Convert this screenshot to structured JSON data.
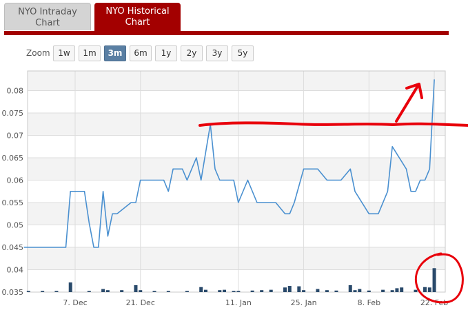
{
  "tabs": [
    {
      "line1": "NYO Intraday",
      "line2": "Chart",
      "active": false
    },
    {
      "line1": "NYO Historical",
      "line2": "Chart",
      "active": true
    }
  ],
  "zoom": {
    "label": "Zoom",
    "options": [
      "1w",
      "1m",
      "3m",
      "6m",
      "1y",
      "2y",
      "3y",
      "5y"
    ],
    "selected": "3m"
  },
  "colors": {
    "accent": "#a30000",
    "price_line": "#4a90d0",
    "volume_bar": "#2a4a6b",
    "annotation": "#e8000b"
  },
  "chart_data": {
    "type": "line",
    "ylim": [
      0.035,
      0.0825
    ],
    "y_ticks": [
      "0.035",
      "0.04",
      "0.045",
      "0.05",
      "0.055",
      "0.06",
      "0.065",
      "0.07",
      "0.075",
      "0.08"
    ],
    "x_ticks": [
      "7. Dec",
      "21. Dec",
      "11. Jan",
      "25. Jan",
      "8. Feb",
      "22. Feb"
    ],
    "x_tick_dates": [
      "2012-12-07",
      "2012-12-21",
      "2013-01-11",
      "2013-01-25",
      "2013-02-08",
      "2013-02-22"
    ],
    "grid": true,
    "series": [
      {
        "kind": "price",
        "points": [
          [
            "2012-11-26",
            0.045
          ],
          [
            "2012-12-05",
            0.045
          ],
          [
            "2012-12-06",
            0.0575
          ],
          [
            "2012-12-09",
            0.0575
          ],
          [
            "2012-12-10",
            0.0505
          ],
          [
            "2012-12-11",
            0.045
          ],
          [
            "2012-12-12",
            0.045
          ],
          [
            "2012-12-13",
            0.0575
          ],
          [
            "2012-12-14",
            0.0475
          ],
          [
            "2012-12-15",
            0.0525
          ],
          [
            "2012-12-16",
            0.0525
          ],
          [
            "2012-12-19",
            0.055
          ],
          [
            "2012-12-20",
            0.055
          ],
          [
            "2012-12-21",
            0.06
          ],
          [
            "2012-12-26",
            0.06
          ],
          [
            "2012-12-27",
            0.0575
          ],
          [
            "2012-12-28",
            0.0625
          ],
          [
            "2012-12-30",
            0.0625
          ],
          [
            "2012-12-31",
            0.06
          ],
          [
            "2013-01-02",
            0.065
          ],
          [
            "2013-01-03",
            0.06
          ],
          [
            "2013-01-05",
            0.0725
          ],
          [
            "2013-01-06",
            0.0625
          ],
          [
            "2013-01-07",
            0.06
          ],
          [
            "2013-01-10",
            0.06
          ],
          [
            "2013-01-11",
            0.055
          ],
          [
            "2013-01-13",
            0.06
          ],
          [
            "2013-01-15",
            0.055
          ],
          [
            "2013-01-19",
            0.055
          ],
          [
            "2013-01-21",
            0.0525
          ],
          [
            "2013-01-22",
            0.0525
          ],
          [
            "2013-01-23",
            0.055
          ],
          [
            "2013-01-25",
            0.0625
          ],
          [
            "2013-01-28",
            0.0625
          ],
          [
            "2013-01-30",
            0.06
          ],
          [
            "2013-02-02",
            0.06
          ],
          [
            "2013-02-04",
            0.0625
          ],
          [
            "2013-02-05",
            0.0575
          ],
          [
            "2013-02-08",
            0.0525
          ],
          [
            "2013-02-10",
            0.0525
          ],
          [
            "2013-02-12",
            0.0575
          ],
          [
            "2013-02-13",
            0.0675
          ],
          [
            "2013-02-16",
            0.0625
          ],
          [
            "2013-02-17",
            0.0575
          ],
          [
            "2013-02-18",
            0.0575
          ],
          [
            "2013-02-19",
            0.06
          ],
          [
            "2013-02-20",
            0.06
          ],
          [
            "2013-02-21",
            0.0625
          ],
          [
            "2013-02-22",
            0.0825
          ]
        ]
      },
      {
        "kind": "volume",
        "points": [
          [
            "2012-11-27",
            0.3
          ],
          [
            "2012-11-30",
            0.3
          ],
          [
            "2012-12-03",
            0.3
          ],
          [
            "2012-12-06",
            2.5
          ],
          [
            "2012-12-10",
            0.3
          ],
          [
            "2012-12-13",
            0.8
          ],
          [
            "2012-12-14",
            0.5
          ],
          [
            "2012-12-17",
            0.5
          ],
          [
            "2012-12-20",
            1.8
          ],
          [
            "2012-12-21",
            0.5
          ],
          [
            "2012-12-24",
            0.3
          ],
          [
            "2012-12-27",
            0.3
          ],
          [
            "2012-12-31",
            0.3
          ],
          [
            "2013-01-03",
            1.3
          ],
          [
            "2013-01-04",
            0.6
          ],
          [
            "2013-01-07",
            0.5
          ],
          [
            "2013-01-08",
            0.6
          ],
          [
            "2013-01-10",
            0.3
          ],
          [
            "2013-01-11",
            0.3
          ],
          [
            "2013-01-14",
            0.4
          ],
          [
            "2013-01-16",
            0.5
          ],
          [
            "2013-01-18",
            0.6
          ],
          [
            "2013-01-21",
            1.2
          ],
          [
            "2013-01-22",
            1.6
          ],
          [
            "2013-01-24",
            1.5
          ],
          [
            "2013-01-25",
            0.5
          ],
          [
            "2013-01-28",
            0.8
          ],
          [
            "2013-01-30",
            0.5
          ],
          [
            "2013-02-01",
            0.4
          ],
          [
            "2013-02-04",
            1.8
          ],
          [
            "2013-02-05",
            0.5
          ],
          [
            "2013-02-06",
            0.8
          ],
          [
            "2013-02-08",
            0.4
          ],
          [
            "2013-02-11",
            0.6
          ],
          [
            "2013-02-13",
            0.5
          ],
          [
            "2013-02-14",
            1.0
          ],
          [
            "2013-02-15",
            1.2
          ],
          [
            "2013-02-18",
            0.6
          ],
          [
            "2013-02-20",
            1.3
          ],
          [
            "2013-02-21",
            1.2
          ],
          [
            "2013-02-22",
            6.2
          ]
        ]
      }
    ]
  }
}
